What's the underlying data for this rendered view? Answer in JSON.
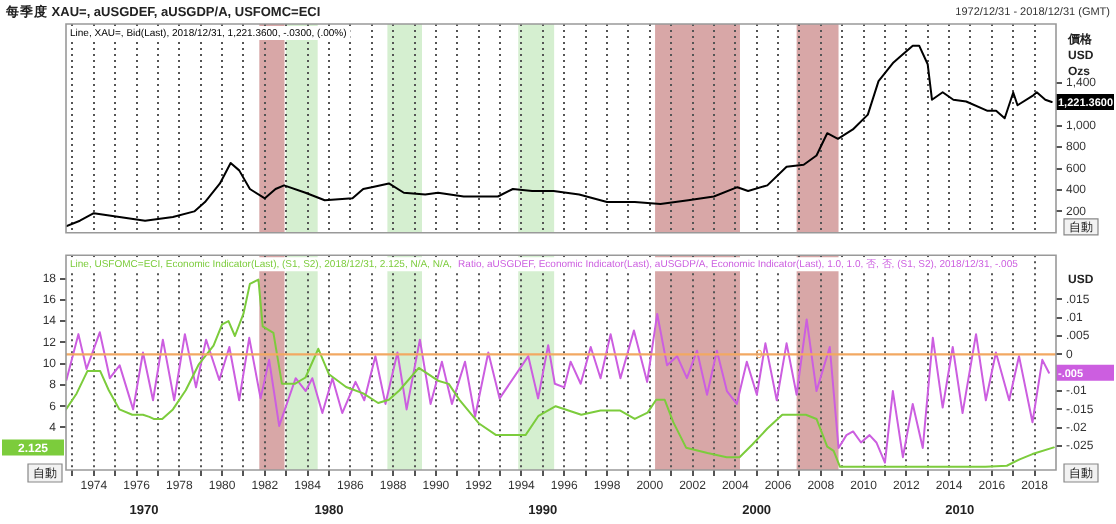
{
  "chart_data": [
    {
      "type": "line",
      "title": "每季度 XAU=, aUSGDEF, aUSGDP/A, USFOMC=ECI",
      "subtitle": "1972/12/31 - 2018/12/31 (GMT)",
      "ylabel": "價格\nUSD\nOzs",
      "annotations": [
        "自動"
      ],
      "series": [
        {
          "name": "Line, XAU=, Bid(Last), 2018/12/31, 1,221.3600, -.0300, (.00%)",
          "color": "#000000",
          "x": [
            1972.7,
            1973.35,
            1974,
            1975.2,
            1976.4,
            1977.7,
            1978.7,
            1979.2,
            1979.9,
            1980.4,
            1980.8,
            1981.3,
            1982.0,
            1982.5,
            1982.9,
            1983.9,
            1984.8,
            1986.1,
            1986.6,
            1987.0,
            1987.8,
            1988.5,
            1989.5,
            1990.1,
            1991.3,
            1992.9,
            1993.6,
            1994.5,
            1995.5,
            1996.7,
            1998.0,
            1999.3,
            2000.5,
            2001.8,
            2003.0,
            2004.1,
            2004.6,
            2005.5,
            2006.4,
            2007.2,
            2007.8,
            2008.3,
            2008.8,
            2009.5,
            2010.2,
            2010.7,
            2011.4,
            2011.8,
            2012.3,
            2012.6,
            2013.0,
            2013.2,
            2013.7,
            2014.2,
            2014.8,
            2015.8,
            2016.2,
            2016.6,
            2017.0,
            2017.2,
            2017.9,
            2018.1,
            2018.5,
            2018.8
          ],
          "values": [
            61,
            113,
            183,
            148,
            113,
            148,
            200,
            287,
            461,
            652,
            583,
            409,
            322,
            409,
            443,
            374,
            304,
            322,
            409,
            426,
            461,
            374,
            357,
            374,
            339,
            339,
            409,
            391,
            391,
            357,
            287,
            287,
            270,
            304,
            339,
            426,
            391,
            443,
            617,
            635,
            722,
            930,
            878,
            965,
            1104,
            1417,
            1591,
            1661,
            1748,
            1748,
            1574,
            1243,
            1313,
            1243,
            1226,
            1139,
            1139,
            1070,
            1310,
            1191,
            1278,
            1313,
            1243,
            1221.36
          ],
          "value_labels": [
            null,
            null,
            null,
            null,
            null,
            null,
            null,
            null,
            null,
            null,
            null,
            null,
            null,
            null,
            null,
            null,
            null,
            null,
            null,
            null,
            null,
            null,
            null,
            null,
            null,
            null,
            null,
            null,
            null,
            null,
            null,
            null,
            null,
            null,
            null,
            null,
            null,
            null,
            null,
            null,
            null,
            null,
            null,
            null,
            null,
            null,
            null,
            null,
            null,
            null,
            null,
            null,
            null,
            null,
            null,
            null,
            null,
            null,
            null,
            null,
            null,
            null,
            null,
            "1,221.3600"
          ]
        }
      ],
      "xlim": [
        1972.7,
        2019
      ],
      "ylim": [
        0,
        1950
      ],
      "yticks": [
        200,
        400,
        600,
        800,
        {
          "value": 1000,
          "label": "1,000"
        },
        {
          "value": 1400,
          "label": "1,400"
        }
      ],
      "xticks": [
        {
          "value": 1973,
          "label": null
        },
        1974,
        {
          "value": 1975,
          "label": null
        },
        1976,
        {
          "value": 1977,
          "label": null
        },
        1978,
        {
          "value": 1979,
          "label": null
        },
        1980,
        {
          "value": 1981,
          "label": null
        },
        1982,
        {
          "value": 1983,
          "label": null
        },
        1984,
        {
          "value": 1985,
          "label": null
        },
        1986,
        {
          "value": 1987,
          "label": null
        },
        1988,
        {
          "value": 1989,
          "label": null
        },
        1990,
        {
          "value": 1991,
          "label": null
        },
        1992,
        {
          "value": 1993,
          "label": null
        },
        1994,
        {
          "value": 1995,
          "label": null
        },
        1996,
        {
          "value": 1997,
          "label": null
        },
        1998,
        {
          "value": 1999,
          "label": null
        },
        2000,
        {
          "value": 2001,
          "label": null
        },
        2002,
        {
          "value": 2003,
          "label": null
        },
        2004,
        {
          "value": 2005,
          "label": null
        },
        2006,
        {
          "value": 2007,
          "label": null
        },
        2008,
        {
          "value": 2009,
          "label": null
        },
        2010,
        {
          "value": 2011,
          "label": null
        },
        2012,
        {
          "value": 2013,
          "label": null
        },
        2014,
        {
          "value": 2015,
          "label": null
        },
        2016,
        {
          "value": 2017,
          "label": null
        },
        2018
      ],
      "bands": [
        {
          "axis": "x",
          "from": 1981.74,
          "to": 1982.92,
          "color": "#d8a7a7"
        },
        {
          "axis": "x",
          "from": 1982.98,
          "to": 1984.47,
          "color": "#d5efd0"
        },
        {
          "axis": "x",
          "from": 1987.73,
          "to": 1989.35,
          "color": "#d5efd0"
        },
        {
          "axis": "x",
          "from": 1993.85,
          "to": 1995.53,
          "color": "#d5efd0"
        },
        {
          "axis": "x",
          "from": 2000.25,
          "to": 2004.22,
          "color": "#d8a7a7"
        },
        {
          "axis": "x",
          "from": 2006.87,
          "to": 2008.83,
          "color": "#d8a7a7"
        }
      ],
      "grid": "x",
      "legend": "top left",
      "tick_labels": "y",
      "marker": "none",
      "line_style": "solid"
    },
    {
      "type": "line",
      "y2label": "USD",
      "annotations": [
        "2.125",
        "自動",
        "自動",
        "1970",
        "1980",
        "1990",
        "2000",
        "2010"
      ],
      "series": [
        {
          "name": "Line, USFOMC=ECI, Economic Indicator(Last), (S1, S2), 2018/12/31, 2.125, N/A, N/A,",
          "color": "#7ccc3c",
          "x": [
            1972.7,
            1973.2,
            1973.7,
            1974.3,
            1974.7,
            1975.2,
            1975.8,
            1976.3,
            1976.6,
            1976.8,
            1977.2,
            1977.7,
            1978.3,
            1978.9,
            1979.6,
            1980.0,
            1980.3,
            1980.6,
            1981.0,
            1981.3,
            1981.6,
            1981.7,
            1981.9,
            1982.4,
            1982.8,
            1983.4,
            1983.9,
            1984.5,
            1985.0,
            1985.8,
            1986.6,
            1987.3,
            1987.8,
            1988.3,
            1989.2,
            1990.1,
            1990.6,
            1991.1,
            1992.0,
            1992.8,
            1994.2,
            1994.8,
            1995.6,
            1996.8,
            1997.7,
            1998.6,
            1999.3,
            1999.9,
            2000.3,
            2000.7,
            2001.1,
            2001.7,
            2002.7,
            2003.6,
            2004.2,
            2004.8,
            2005.5,
            2006.2,
            2007.3,
            2007.8,
            2008.3,
            2008.6,
            2008.9,
            2015.7,
            2016.7,
            2017.3,
            2017.9,
            2018.9
          ],
          "values": [
            5.7,
            7.2,
            9.3,
            9.3,
            7.5,
            5.7,
            5.2,
            5.2,
            5.0,
            4.8,
            4.8,
            5.7,
            7.5,
            9.9,
            11.7,
            13.7,
            14.0,
            12.6,
            14.7,
            17.5,
            17.8,
            17.9,
            13.5,
            12.9,
            8.1,
            8.1,
            8.7,
            11.4,
            9.0,
            7.8,
            7.2,
            6.3,
            6.6,
            7.5,
            9.6,
            8.4,
            8.1,
            6.6,
            4.4,
            3.3,
            3.3,
            5.1,
            6.0,
            5.2,
            5.6,
            5.6,
            4.8,
            5.4,
            6.6,
            6.6,
            4.5,
            2.1,
            1.6,
            1.2,
            1.2,
            2.4,
            3.9,
            5.2,
            5.2,
            4.8,
            2.2,
            1.8,
            0.3,
            0.3,
            0.4,
            1.0,
            1.5,
            2.125
          ]
        },
        {
          "name": "Ratio, aUSGDEF, Economic Indicator(Last), aUSGDP/A, Economic Indicator(Last), 1.0, 1.0, 否, 否, (S1, S2), 2018/12/31, -.005",
          "color": "#cc5ee0",
          "axis": "y2",
          "x": [
            1972.72,
            1973.28,
            1973.66,
            1974.28,
            1974.75,
            1975.21,
            1975.84,
            1976.3,
            1976.77,
            1977.23,
            1977.76,
            1978.26,
            1978.78,
            1979.25,
            1979.87,
            1980.34,
            1980.8,
            1981.27,
            1981.8,
            1982.2,
            1982.67,
            1983.44,
            1983.91,
            1984.22,
            1984.69,
            1985.16,
            1985.62,
            1986.24,
            1986.65,
            1987.17,
            1987.64,
            1988.2,
            1988.63,
            1989.25,
            1989.75,
            1990.28,
            1990.75,
            1991.36,
            1991.83,
            1992.45,
            1992.98,
            1994.32,
            1994.78,
            1995.25,
            1995.56,
            1996.0,
            1996.3,
            1996.77,
            1997.24,
            1997.7,
            1998.17,
            1998.63,
            1999.26,
            1999.88,
            2000.35,
            2000.81,
            2001.28,
            2001.74,
            2002.21,
            2002.68,
            2003.14,
            2003.61,
            2004.07,
            2004.54,
            2005.01,
            2005.41,
            2005.94,
            2006.4,
            2006.87,
            2007.34,
            2007.8,
            2008.42,
            2008.83,
            2009.2,
            2009.51,
            2009.88,
            2010.28,
            2010.6,
            2011.0,
            2011.37,
            2011.84,
            2012.3,
            2012.77,
            2013.24,
            2013.7,
            2014.17,
            2014.63,
            2015.26,
            2015.72,
            2016.19,
            2016.81,
            2017.27,
            2017.9,
            2018.36,
            2018.67
          ],
          "values": [
            -0.007,
            0.0055,
            -0.004,
            0.006,
            -0.0065,
            -0.003,
            -0.015,
            0.0005,
            -0.0125,
            0.004,
            -0.0125,
            0.0055,
            -0.009,
            0.004,
            -0.007,
            0.002,
            -0.0125,
            0.0045,
            -0.012,
            -0.0015,
            -0.0195,
            -0.0065,
            -0.01,
            -0.0065,
            -0.016,
            -0.0065,
            -0.016,
            -0.0075,
            -0.0125,
            -0.0005,
            -0.0135,
            0.0005,
            -0.015,
            0.004,
            -0.0135,
            -0.002,
            -0.0135,
            -0.002,
            -0.017,
            0.0005,
            -0.012,
            -0.0005,
            -0.012,
            0.0025,
            -0.008,
            -0.009,
            -0.002,
            -0.008,
            0.002,
            -0.0065,
            0.0055,
            -0.0065,
            0.0065,
            -0.0075,
            0.011,
            -0.003,
            -0.0005,
            -0.0065,
            0.001,
            -0.011,
            0.001,
            -0.01,
            -0.0135,
            -0.002,
            -0.011,
            0.003,
            -0.0125,
            0.003,
            -0.011,
            0.0095,
            -0.01,
            0.002,
            -0.0255,
            -0.022,
            -0.021,
            -0.024,
            -0.022,
            -0.024,
            -0.0295,
            -0.01,
            -0.028,
            -0.0135,
            -0.0255,
            0.0045,
            -0.0145,
            0.002,
            -0.016,
            0.0055,
            -0.0125,
            0.0005,
            -0.0125,
            -0.0005,
            -0.0185,
            -0.0015,
            -0.005
          ],
          "value_labels": [
            null,
            null,
            null,
            null,
            null,
            null,
            null,
            null,
            null,
            null,
            null,
            null,
            null,
            null,
            null,
            null,
            null,
            null,
            null,
            null,
            null,
            null,
            null,
            null,
            null,
            null,
            null,
            null,
            null,
            null,
            null,
            null,
            null,
            null,
            null,
            null,
            null,
            null,
            null,
            null,
            null,
            null,
            null,
            null,
            null,
            null,
            null,
            null,
            null,
            null,
            null,
            null,
            null,
            null,
            null,
            null,
            null,
            null,
            null,
            null,
            null,
            null,
            null,
            null,
            null,
            null,
            null,
            null,
            null,
            null,
            null,
            null,
            null,
            null,
            null,
            null,
            null,
            null,
            null,
            null,
            null,
            null,
            null,
            null,
            null,
            null,
            null,
            null,
            null,
            null,
            null,
            null,
            null,
            null,
            "-.005"
          ]
        }
      ],
      "xlim": [
        1972.7,
        2019
      ],
      "ylim": [
        0,
        20.2
      ],
      "yticks": [
        4,
        6,
        8,
        10,
        12,
        14,
        16,
        18
      ],
      "y2lim": [
        -0.0315,
        0.027
      ],
      "y2ticks": [
        {
          "value": 0.015,
          "label": ".015"
        },
        {
          "value": 0.01,
          "label": ".01"
        },
        {
          "value": 0.005,
          "label": ".005"
        },
        0,
        {
          "value": -0.01,
          "label": "-.01"
        },
        {
          "value": -0.015,
          "label": "-.015"
        },
        {
          "value": -0.02,
          "label": "-.02"
        },
        {
          "value": -0.025,
          "label": "-.025"
        }
      ],
      "xticks": [
        {
          "value": 1973,
          "label": null
        },
        1974,
        {
          "value": 1975,
          "label": null
        },
        1976,
        {
          "value": 1977,
          "label": null
        },
        1978,
        {
          "value": 1979,
          "label": null
        },
        1980,
        {
          "value": 1981,
          "label": null
        },
        1982,
        {
          "value": 1983,
          "label": null
        },
        1984,
        {
          "value": 1985,
          "label": null
        },
        1986,
        {
          "value": 1987,
          "label": null
        },
        1988,
        {
          "value": 1989,
          "label": null
        },
        1990,
        {
          "value": 1991,
          "label": null
        },
        1992,
        {
          "value": 1993,
          "label": null
        },
        1994,
        {
          "value": 1995,
          "label": null
        },
        1996,
        {
          "value": 1997,
          "label": null
        },
        1998,
        {
          "value": 1999,
          "label": null
        },
        2000,
        {
          "value": 2001,
          "label": null
        },
        2002,
        {
          "value": 2003,
          "label": null
        },
        2004,
        {
          "value": 2005,
          "label": null
        },
        2006,
        {
          "value": 2007,
          "label": null
        },
        2008,
        {
          "value": 2009,
          "label": null
        },
        2010,
        {
          "value": 2011,
          "label": null
        },
        2012,
        {
          "value": 2013,
          "label": null
        },
        2014,
        {
          "value": 2015,
          "label": null
        },
        2016,
        {
          "value": 2017,
          "label": null
        },
        2018
      ],
      "ref_lines": [
        {
          "axis": "y2",
          "value": 0,
          "label": "0",
          "color": "#f2a862"
        }
      ],
      "bands": [
        {
          "axis": "x",
          "from": 1981.74,
          "to": 1982.92,
          "color": "#d8a7a7"
        },
        {
          "axis": "x",
          "from": 1982.98,
          "to": 1984.47,
          "color": "#d5efd0"
        },
        {
          "axis": "x",
          "from": 1987.73,
          "to": 1989.35,
          "color": "#d5efd0"
        },
        {
          "axis": "x",
          "from": 1993.85,
          "to": 1995.53,
          "color": "#d5efd0"
        },
        {
          "axis": "x",
          "from": 2000.25,
          "to": 2004.22,
          "color": "#d8a7a7"
        },
        {
          "axis": "x",
          "from": 2006.87,
          "to": 2008.83,
          "color": "#d8a7a7"
        }
      ],
      "grid": "x",
      "legend": "top left",
      "marker": "none",
      "line_style": "solid"
    }
  ]
}
